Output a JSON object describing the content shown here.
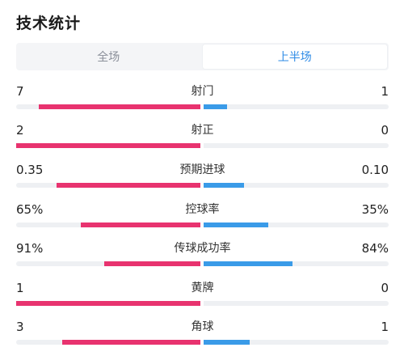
{
  "header": {
    "title": "技术统计"
  },
  "tabs": [
    {
      "label": "全场",
      "active": false
    },
    {
      "label": "上半场",
      "active": true
    }
  ],
  "colors": {
    "home": "#e8336f",
    "away": "#3a9be8",
    "accent": "#2e8be6"
  },
  "stats": [
    {
      "name": "射门",
      "home": "7",
      "away": "1",
      "home_share": 0.875,
      "away_share": 0.125
    },
    {
      "name": "射正",
      "home": "2",
      "away": "0",
      "home_share": 1.0,
      "away_share": 0.0
    },
    {
      "name": "预期进球",
      "home": "0.35",
      "away": "0.10",
      "home_share": 0.78,
      "away_share": 0.22
    },
    {
      "name": "控球率",
      "home": "65%",
      "away": "35%",
      "home_share": 0.65,
      "away_share": 0.35
    },
    {
      "name": "传球成功率",
      "home": "91%",
      "away": "84%",
      "home_share": 0.52,
      "away_share": 0.48
    },
    {
      "name": "黄牌",
      "home": "1",
      "away": "0",
      "home_share": 1.0,
      "away_share": 0.0
    },
    {
      "name": "角球",
      "home": "3",
      "away": "1",
      "home_share": 0.75,
      "away_share": 0.25
    }
  ]
}
